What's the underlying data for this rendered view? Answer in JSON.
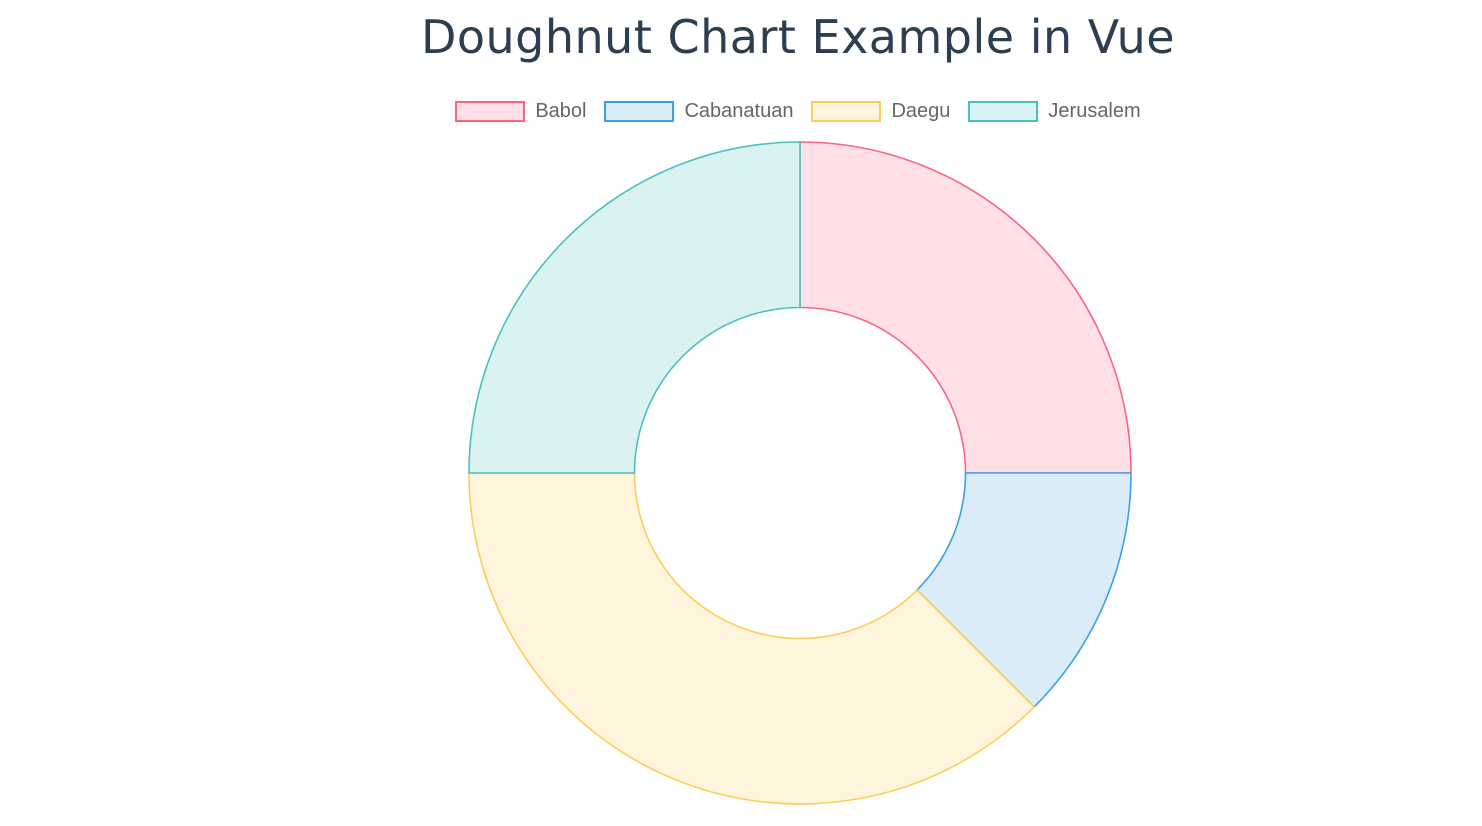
{
  "title": "Doughnut Chart Example in Vue",
  "chart_data": {
    "type": "doughnut",
    "title": "Doughnut Chart Example in Vue",
    "categories": [
      "Babol",
      "Cabanatuan",
      "Daegu",
      "Jerusalem"
    ],
    "values": [
      25,
      12.5,
      37.5,
      25
    ],
    "colors": {
      "fill": [
        "#ffe0e6",
        "#dbecf9",
        "#fff4dc",
        "#dbf2f2"
      ],
      "border": [
        "#ff6384",
        "#36a2eb",
        "#ffcd56",
        "#4bc0c0"
      ]
    },
    "legend_position": "top",
    "cutout_ratio": 0.5
  }
}
